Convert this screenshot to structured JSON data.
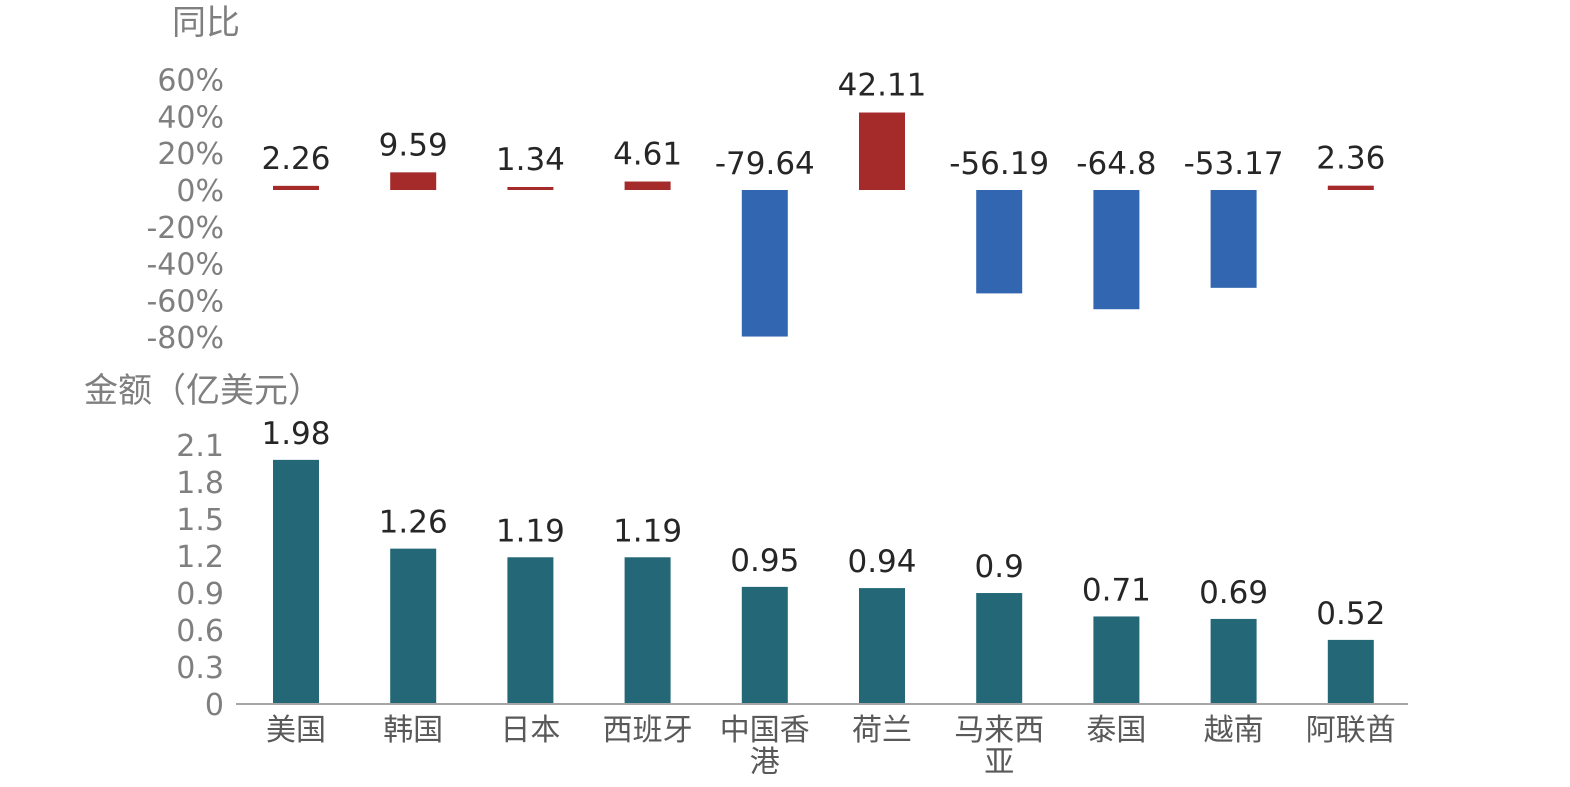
{
  "chart_data": [
    {
      "type": "bar",
      "title": "同比",
      "ylabel": "同比",
      "categories": [
        "美国",
        "韩国",
        "日本",
        "西班牙",
        "中国香港",
        "荷兰",
        "马来西亚",
        "泰国",
        "越南",
        "阿联酋"
      ],
      "values": [
        2.26,
        9.59,
        1.34,
        4.61,
        -79.64,
        42.11,
        -56.19,
        -64.8,
        -53.17,
        2.36
      ],
      "value_labels": [
        "2.26",
        "9.59",
        "1.34",
        "4.61",
        "-79.64",
        "42.11",
        "-56.19",
        "-64.8",
        "-53.17",
        "2.36"
      ],
      "ylim": [
        -80,
        60
      ],
      "yticks": [
        "60%",
        "40%",
        "20%",
        "0%",
        "-20%",
        "-40%",
        "-60%",
        "-80%"
      ],
      "ytick_values": [
        60,
        40,
        20,
        0,
        -20,
        -40,
        -60,
        -80
      ],
      "colors": {
        "positive": "#a52a2a",
        "negative": "#3366b0"
      }
    },
    {
      "type": "bar",
      "title": "金额（亿美元）",
      "ylabel": "金额（亿美元）",
      "categories": [
        "美国",
        "韩国",
        "日本",
        "西班牙",
        "中国香港",
        "荷兰",
        "马来西亚",
        "泰国",
        "越南",
        "阿联酋"
      ],
      "category_lines": [
        [
          "美国"
        ],
        [
          "韩国"
        ],
        [
          "日本"
        ],
        [
          "西班牙"
        ],
        [
          "中国香",
          "港"
        ],
        [
          "荷兰"
        ],
        [
          "马来西",
          "亚"
        ],
        [
          "泰国"
        ],
        [
          "越南"
        ],
        [
          "阿联酋"
        ]
      ],
      "values": [
        1.98,
        1.26,
        1.19,
        1.19,
        0.95,
        0.94,
        0.9,
        0.71,
        0.69,
        0.52
      ],
      "value_labels": [
        "1.98",
        "1.26",
        "1.19",
        "1.19",
        "0.95",
        "0.94",
        "0.9",
        "0.71",
        "0.69",
        "0.52"
      ],
      "ylim": [
        0,
        2.1
      ],
      "yticks": [
        "2.1",
        "1.8",
        "1.5",
        "1.2",
        "0.9",
        "0.6",
        "0.3",
        "0"
      ],
      "ytick_values": [
        2.1,
        1.8,
        1.5,
        1.2,
        0.9,
        0.6,
        0.3,
        0
      ],
      "colors": {
        "bar": "#246878",
        "axis": "#a6a6a6"
      }
    }
  ]
}
